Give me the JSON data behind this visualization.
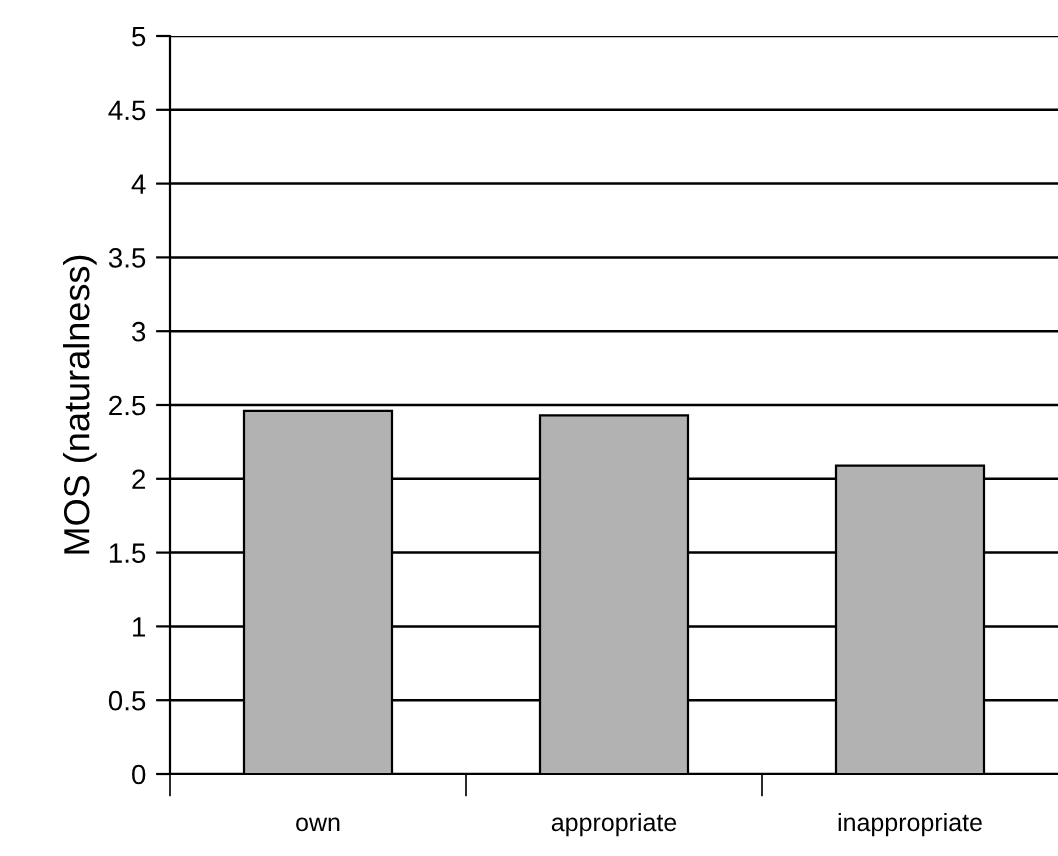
{
  "chart_data": {
    "type": "bar",
    "ylabel": "MOS (naturalness)",
    "categories": [
      "own",
      "appropriate",
      "inappropriate"
    ],
    "values": [
      2.46,
      2.43,
      2.09
    ],
    "color": "#b2b2b2",
    "ylim": [
      0,
      5
    ],
    "yticks": [
      0,
      0.5,
      1,
      1.5,
      2,
      2.5,
      3,
      3.5,
      4,
      4.5,
      5
    ],
    "grid": "y",
    "legend": false
  }
}
